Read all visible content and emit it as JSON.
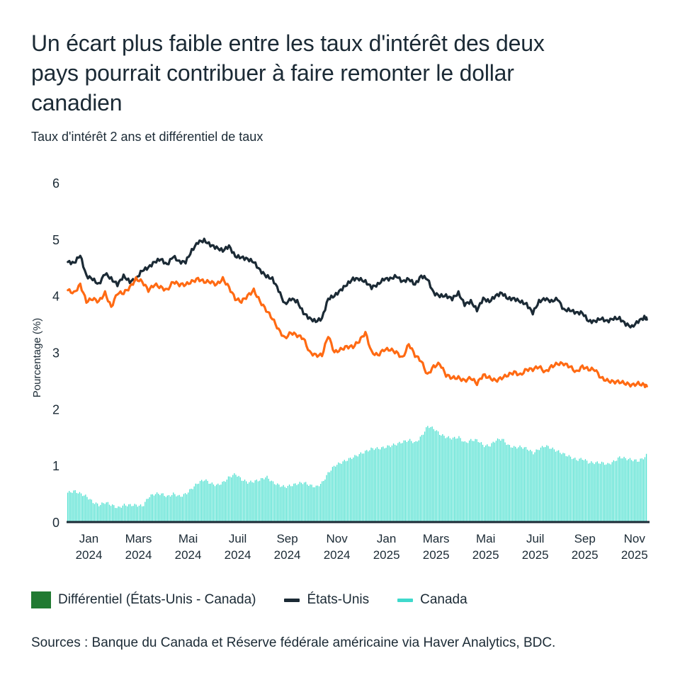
{
  "title": "Un écart plus faible entre les taux d'intérêt des deux pays pourrait contribuer à faire remonter le dollar canadien",
  "subtitle": "Taux d'intérêt 2 ans et différentiel de taux",
  "sources": "Sources : Banque du Canada et Réserve fédérale américaine via Haver Analytics, BDC.",
  "colors": {
    "us": "#1b2a35",
    "canada_line": "#ff6a13",
    "differential": "#4ee0d0",
    "differential_legend": "#217a32",
    "canada_legend": "#3fd9cc",
    "axis": "#1b2a35"
  },
  "chart_data": {
    "type": "line",
    "title": "Un écart plus faible entre les taux d'intérêt des deux pays pourrait contribuer à faire remonter le dollar canadien",
    "subtitle": "Taux d'intérêt 2 ans et différentiel de taux",
    "xlabel": "",
    "ylabel": "Pourcentage (%)",
    "ylim": [
      0,
      6
    ],
    "yticks": [
      "0",
      "1",
      "2",
      "3",
      "4",
      "5",
      "6"
    ],
    "xlim_months": [
      -0.9,
      22.55
    ],
    "xticks": [
      {
        "month": 0,
        "line1": "Jan",
        "line2": "2024"
      },
      {
        "month": 2,
        "line1": "Mars",
        "line2": "2024"
      },
      {
        "month": 4,
        "line1": "Mai",
        "line2": "2024"
      },
      {
        "month": 6,
        "line1": "Juil",
        "line2": "2024"
      },
      {
        "month": 8,
        "line1": "Sep",
        "line2": "2024"
      },
      {
        "month": 10,
        "line1": "Nov",
        "line2": "2024"
      },
      {
        "month": 12,
        "line1": "Jan",
        "line2": "2025"
      },
      {
        "month": 14,
        "line1": "Mars",
        "line2": "2025"
      },
      {
        "month": 16,
        "line1": "Mai",
        "line2": "2025"
      },
      {
        "month": 18,
        "line1": "Juil",
        "line2": "2025"
      },
      {
        "month": 20,
        "line1": "Sep",
        "line2": "2025"
      },
      {
        "month": 22,
        "line1": "Nov",
        "line2": "2025"
      }
    ],
    "grid": false,
    "legend_position": "bottom-left",
    "legend": [
      {
        "key": "differential",
        "label": "Différentiel (États-Unis - Canada)",
        "kind": "box"
      },
      {
        "key": "us",
        "label": "États-Unis",
        "kind": "line"
      },
      {
        "key": "canada",
        "label": "Canada",
        "kind": "line"
      }
    ],
    "x_months": [
      -0.85,
      -0.6,
      -0.35,
      -0.1,
      0.15,
      0.4,
      0.65,
      0.9,
      1.15,
      1.4,
      1.65,
      1.9,
      2.15,
      2.4,
      2.65,
      2.9,
      3.15,
      3.4,
      3.65,
      3.9,
      4.15,
      4.4,
      4.65,
      4.9,
      5.15,
      5.4,
      5.65,
      5.9,
      6.15,
      6.4,
      6.65,
      6.9,
      7.15,
      7.4,
      7.65,
      7.9,
      8.15,
      8.4,
      8.65,
      8.9,
      9.15,
      9.4,
      9.65,
      9.9,
      10.15,
      10.4,
      10.65,
      10.9,
      11.15,
      11.4,
      11.65,
      11.9,
      12.15,
      12.4,
      12.65,
      12.9,
      13.15,
      13.4,
      13.65,
      13.9,
      14.15,
      14.4,
      14.65,
      14.9,
      15.15,
      15.4,
      15.65,
      15.9,
      16.15,
      16.4,
      16.65,
      16.9,
      17.15,
      17.4,
      17.65,
      17.9,
      18.15,
      18.4,
      18.65,
      18.9,
      19.15,
      19.4,
      19.65,
      19.9,
      20.15,
      20.4,
      20.65,
      20.9,
      21.15,
      21.4,
      21.65,
      21.9,
      22.15,
      22.4,
      22.5
    ],
    "series": [
      {
        "name": "États-Unis",
        "key": "us",
        "values": [
          4.6,
          4.58,
          4.72,
          4.35,
          4.3,
          4.2,
          4.4,
          4.3,
          4.2,
          4.35,
          4.25,
          4.3,
          4.45,
          4.5,
          4.6,
          4.65,
          4.55,
          4.7,
          4.6,
          4.6,
          4.8,
          4.95,
          4.98,
          4.9,
          4.85,
          4.8,
          4.88,
          4.7,
          4.68,
          4.65,
          4.6,
          4.45,
          4.35,
          4.3,
          4.1,
          3.85,
          3.95,
          3.9,
          3.7,
          3.6,
          3.55,
          3.6,
          3.95,
          4.0,
          4.1,
          4.2,
          4.3,
          4.3,
          4.25,
          4.15,
          4.2,
          4.3,
          4.3,
          4.35,
          4.25,
          4.3,
          4.2,
          4.35,
          4.3,
          4.05,
          4.0,
          4.0,
          3.95,
          4.05,
          3.85,
          3.9,
          3.75,
          3.95,
          3.9,
          4.0,
          4.05,
          3.95,
          3.95,
          3.9,
          3.85,
          3.7,
          3.9,
          3.95,
          3.9,
          3.95,
          3.75,
          3.75,
          3.7,
          3.7,
          3.55,
          3.55,
          3.6,
          3.55,
          3.6,
          3.6,
          3.5,
          3.45,
          3.55,
          3.62,
          3.58
        ]
      },
      {
        "name": "Canada",
        "key": "canada",
        "values": [
          4.1,
          4.05,
          4.2,
          3.9,
          3.95,
          3.9,
          4.05,
          3.8,
          4.05,
          4.05,
          4.15,
          4.3,
          4.25,
          4.1,
          4.2,
          4.15,
          4.1,
          4.25,
          4.2,
          4.2,
          4.25,
          4.3,
          4.25,
          4.25,
          4.2,
          4.3,
          4.15,
          3.95,
          3.9,
          4.0,
          4.1,
          3.9,
          3.75,
          3.6,
          3.4,
          3.25,
          3.35,
          3.3,
          3.25,
          3.0,
          2.95,
          2.95,
          3.3,
          3.0,
          3.05,
          3.1,
          3.1,
          3.2,
          3.35,
          3.0,
          2.95,
          3.05,
          3.05,
          3.0,
          2.9,
          3.15,
          2.95,
          2.85,
          2.6,
          2.75,
          2.8,
          2.6,
          2.55,
          2.55,
          2.5,
          2.55,
          2.45,
          2.6,
          2.55,
          2.5,
          2.55,
          2.6,
          2.65,
          2.6,
          2.7,
          2.7,
          2.75,
          2.65,
          2.75,
          2.8,
          2.8,
          2.75,
          2.65,
          2.75,
          2.7,
          2.7,
          2.55,
          2.5,
          2.48,
          2.48,
          2.45,
          2.42,
          2.45,
          2.42,
          2.4
        ]
      },
      {
        "name": "Différentiel (États-Unis - Canada)",
        "key": "differential",
        "type": "bar",
        "values": [
          0.52,
          0.55,
          0.5,
          0.45,
          0.35,
          0.3,
          0.35,
          0.3,
          0.25,
          0.3,
          0.3,
          0.3,
          0.28,
          0.45,
          0.5,
          0.5,
          0.45,
          0.5,
          0.45,
          0.5,
          0.6,
          0.7,
          0.75,
          0.68,
          0.65,
          0.7,
          0.8,
          0.85,
          0.75,
          0.7,
          0.72,
          0.75,
          0.8,
          0.7,
          0.65,
          0.62,
          0.65,
          0.68,
          0.7,
          0.65,
          0.62,
          0.7,
          0.88,
          1.0,
          1.05,
          1.1,
          1.15,
          1.2,
          1.25,
          1.3,
          1.3,
          1.32,
          1.35,
          1.38,
          1.42,
          1.45,
          1.4,
          1.52,
          1.7,
          1.65,
          1.55,
          1.5,
          1.48,
          1.5,
          1.4,
          1.45,
          1.45,
          1.35,
          1.35,
          1.45,
          1.47,
          1.35,
          1.32,
          1.33,
          1.3,
          1.22,
          1.3,
          1.35,
          1.3,
          1.25,
          1.2,
          1.15,
          1.1,
          1.12,
          1.05,
          1.05,
          1.05,
          1.02,
          1.07,
          1.15,
          1.12,
          1.1,
          1.08,
          1.15,
          1.2
        ]
      }
    ]
  }
}
